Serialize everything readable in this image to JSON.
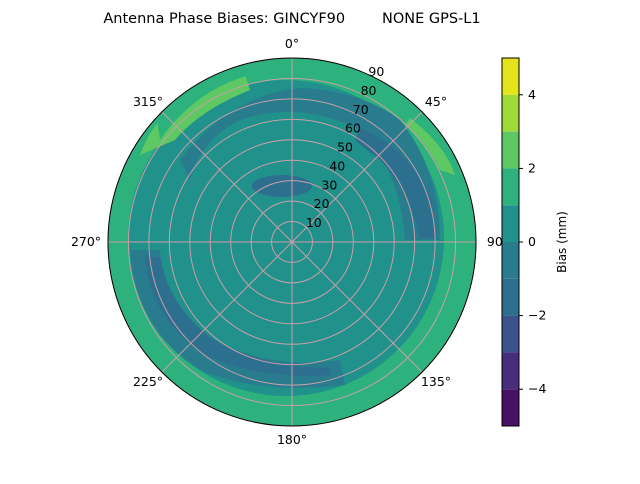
{
  "chart_data": {
    "type": "contour",
    "projection": "polar",
    "title": "Antenna Phase Biases: GINCYF90        NONE GPS-L1",
    "theta_direction": "clockwise",
    "theta_zero": "north",
    "theta_tick_labels": [
      "0°",
      "45°",
      "90°",
      "135°",
      "180°",
      "225°",
      "270°",
      "315°"
    ],
    "radial_ticks": [
      10,
      20,
      30,
      40,
      50,
      60,
      70,
      80,
      90
    ],
    "radial_tick_labels": [
      "10",
      "20",
      "30",
      "40",
      "50",
      "60",
      "70",
      "80",
      "90"
    ],
    "radial_range": [
      0,
      90
    ],
    "grid": true,
    "colormap": "viridis",
    "levels": [
      -5,
      -4,
      -3,
      -2,
      -1,
      0,
      1,
      2,
      3,
      4,
      5
    ],
    "level_colors": [
      "#471164",
      "#472d7b",
      "#3b528b",
      "#2d6f8e",
      "#287c8e",
      "#21918c",
      "#2db27d",
      "#5ec962",
      "#a0da39",
      "#e5e31a"
    ],
    "colorbar": {
      "label": "Bias (mm)",
      "ticks": [
        -4,
        -2,
        0,
        2,
        4
      ],
      "tick_labels": [
        "−4",
        "−2",
        "0",
        "2",
        "4"
      ],
      "range": [
        -5,
        5
      ],
      "placement": "right"
    }
  }
}
